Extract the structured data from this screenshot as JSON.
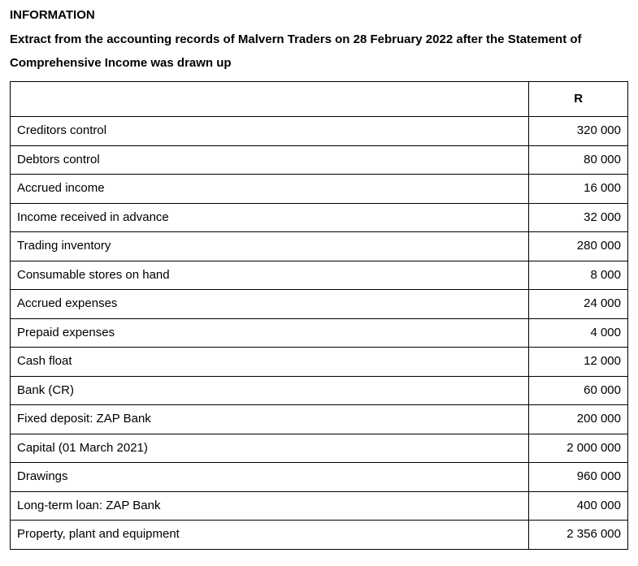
{
  "heading": "INFORMATION",
  "intro": "Extract from the accounting records of Malvern Traders on 28 February 2022 after the Statement of Comprehensive Income was drawn up",
  "table": {
    "header_blank": "",
    "header_r": "R",
    "columns": [
      "label",
      "value"
    ],
    "column_widths_percent": [
      84,
      16
    ],
    "rows": [
      {
        "label": "Creditors control",
        "value": "320 000"
      },
      {
        "label": "Debtors control",
        "value": "80 000"
      },
      {
        "label": "Accrued income",
        "value": "16 000"
      },
      {
        "label": "Income received in advance",
        "value": "32 000"
      },
      {
        "label": "Trading inventory",
        "value": "280 000"
      },
      {
        "label": "Consumable stores on hand",
        "value": "8 000"
      },
      {
        "label": "Accrued expenses",
        "value": "24 000"
      },
      {
        "label": "Prepaid expenses",
        "value": "4 000"
      },
      {
        "label": "Cash float",
        "value": "12 000"
      },
      {
        "label": "Bank (CR)",
        "value": "60 000"
      },
      {
        "label": "Fixed deposit: ZAP Bank",
        "value": "200 000"
      },
      {
        "label": "Capital (01 March 2021)",
        "value": "2 000 000"
      },
      {
        "label": "Drawings",
        "value": "960 000"
      },
      {
        "label": "Long-term loan: ZAP Bank",
        "value": "400 000"
      },
      {
        "label": "Property, plant and equipment",
        "value": "2 356 000"
      }
    ],
    "border_color": "#000000",
    "background_color": "#ffffff",
    "font_size_pt": 11,
    "value_alignment": "right",
    "label_alignment": "left"
  }
}
